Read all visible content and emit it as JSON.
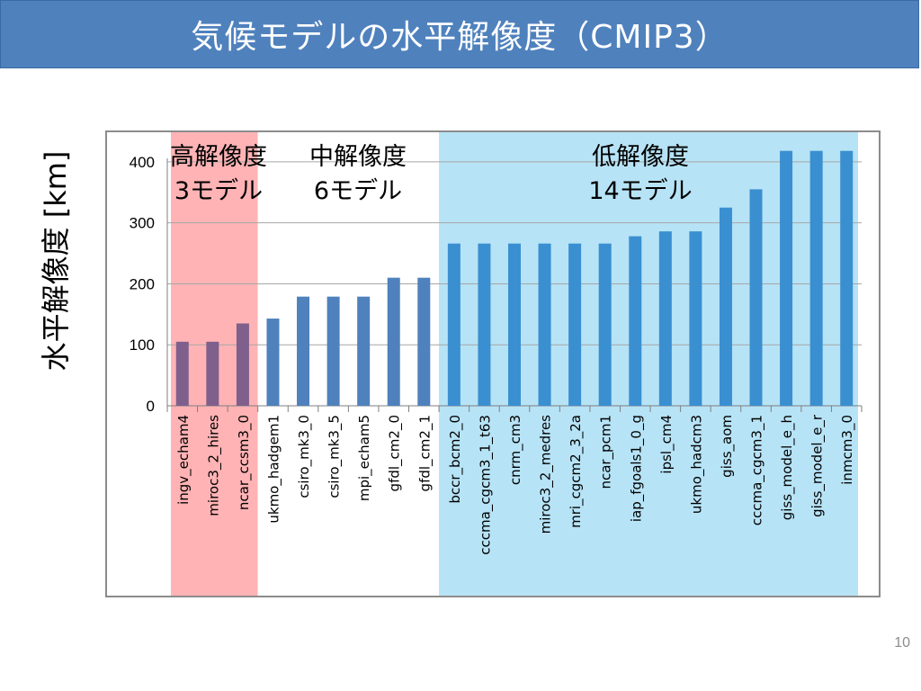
{
  "slide": {
    "title": "気候モデルの水平解像度（CMIP3）",
    "page_number": "10"
  },
  "chart_data": {
    "type": "bar",
    "ylabel": "水平解像度 [km]",
    "xlabel": "",
    "ylim": [
      0,
      450
    ],
    "yticks": [
      0,
      100,
      200,
      300,
      400
    ],
    "grid": true,
    "categories": [
      "ingv_echam4",
      "miroc3_2_hires",
      "ncar_ccsm3_0",
      "ukmo_hadgem1",
      "csiro_mk3_0",
      "csiro_mk3_5",
      "mpi_echam5",
      "gfdl_cm2_0",
      "gfdl_cm2_1",
      "bccr_bcm2_0",
      "cccma_cgcm3_1_t63",
      "cnrm_cm3",
      "miroc3_2_medres",
      "mri_cgcm2_3_2a",
      "ncar_pcm1",
      "iap_fgoals1_0_g",
      "ipsl_cm4",
      "ukmo_hadcm3",
      "giss_aom",
      "cccma_cgcm3_1",
      "giss_model_e_h",
      "giss_model_e_r",
      "inmcm3_0"
    ],
    "values": [
      105,
      105,
      135,
      143,
      179,
      179,
      179,
      210,
      210,
      266,
      266,
      266,
      266,
      266,
      266,
      278,
      286,
      286,
      325,
      355,
      418,
      418,
      418
    ],
    "groups": [
      {
        "line1": "高解像度",
        "line2": "3モデル",
        "start": 0,
        "end": 2,
        "band_color": "#ffb3b5",
        "bar_color": "#7f5f8c"
      },
      {
        "line1": "中解像度",
        "line2": "6モデル",
        "start": 3,
        "end": 8,
        "band_color": "#ffffff",
        "bar_color": "#4f81bd"
      },
      {
        "line1": "低解像度",
        "line2": "14モデル",
        "start": 9,
        "end": 22,
        "band_color": "#b7e3f6",
        "bar_color": "#3a8fd0"
      }
    ]
  }
}
